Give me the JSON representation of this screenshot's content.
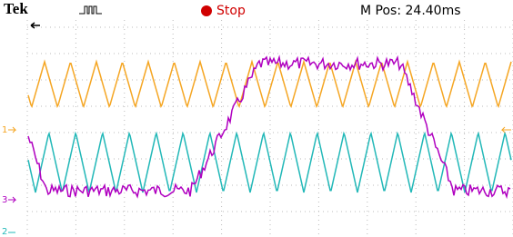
{
  "header": {
    "brand": "Tek",
    "status": "Stop",
    "position": "M Pos: 24.40ms"
  },
  "channels": [
    {
      "label": "1"
    },
    {
      "label": "3"
    },
    {
      "label": "2"
    }
  ]
}
